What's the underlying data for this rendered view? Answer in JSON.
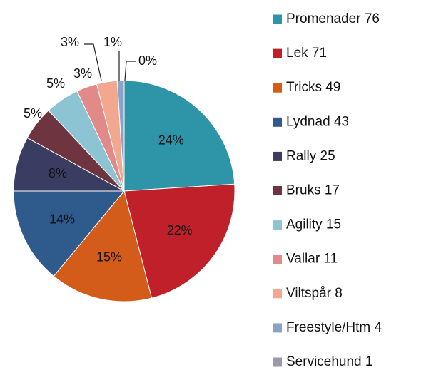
{
  "chart_data": {
    "type": "pie",
    "categories": [
      "Promenader 76",
      "Lek 71",
      "Tricks 49",
      "Lydnad 43",
      "Rally  25",
      "Bruks 17",
      "Agility 15",
      "Vallar 11",
      "Viltspår 8",
      "Freestyle/Htm 4",
      "Servicehund 1"
    ],
    "values": [
      24,
      22,
      15,
      14,
      8,
      5,
      5,
      3,
      3,
      1,
      0
    ],
    "value_labels": [
      "24%",
      "22%",
      "15%",
      "14%",
      "8%",
      "5%",
      "5%",
      "3%",
      "3%",
      "1%",
      "0%"
    ],
    "colors": [
      "#2e95a8",
      "#c0202a",
      "#d35c1a",
      "#2e5a8c",
      "#3a3c62",
      "#6e3540",
      "#8cc4d4",
      "#e28a8a",
      "#f2a88e",
      "#8ea2c8",
      "#9a9aae"
    ],
    "legend": "right"
  }
}
